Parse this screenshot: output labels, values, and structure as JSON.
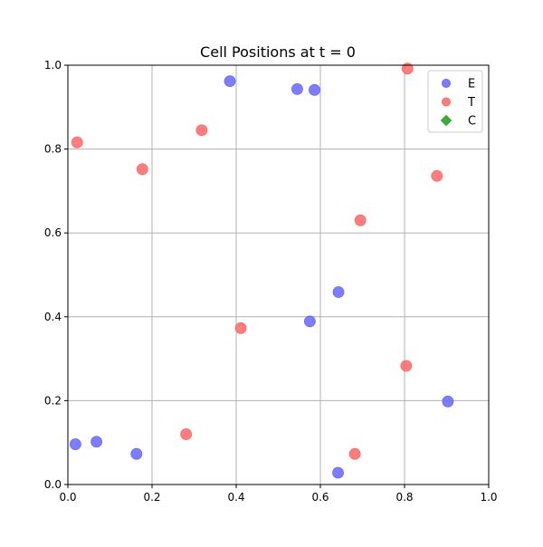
{
  "chart_data": {
    "type": "scatter",
    "title": "Cell Positions at t = 0",
    "xlabel": "",
    "ylabel": "",
    "xlim": [
      0,
      1
    ],
    "ylim": [
      0,
      1
    ],
    "xticks": [
      "0.0",
      "0.2",
      "0.4",
      "0.6",
      "0.8",
      "1.0"
    ],
    "yticks": [
      "0.0",
      "0.2",
      "0.4",
      "0.6",
      "0.8",
      "1.0"
    ],
    "grid": true,
    "legend_position": "top-right",
    "series": [
      {
        "name": "E",
        "marker": "circle",
        "color": "#6666ff",
        "points": [
          {
            "x": 0.385,
            "y": 0.962
          },
          {
            "x": 0.545,
            "y": 0.943
          },
          {
            "x": 0.586,
            "y": 0.941
          },
          {
            "x": 0.643,
            "y": 0.459
          },
          {
            "x": 0.575,
            "y": 0.389
          },
          {
            "x": 0.903,
            "y": 0.198
          },
          {
            "x": 0.018,
            "y": 0.096
          },
          {
            "x": 0.068,
            "y": 0.102
          },
          {
            "x": 0.163,
            "y": 0.073
          },
          {
            "x": 0.642,
            "y": 0.028
          }
        ]
      },
      {
        "name": "T",
        "marker": "circle",
        "color": "#ff6666",
        "points": [
          {
            "x": 0.807,
            "y": 0.992
          },
          {
            "x": 0.022,
            "y": 0.816
          },
          {
            "x": 0.318,
            "y": 0.845
          },
          {
            "x": 0.177,
            "y": 0.752
          },
          {
            "x": 0.877,
            "y": 0.736
          },
          {
            "x": 0.695,
            "y": 0.63
          },
          {
            "x": 0.411,
            "y": 0.373
          },
          {
            "x": 0.804,
            "y": 0.283
          },
          {
            "x": 0.281,
            "y": 0.12
          },
          {
            "x": 0.682,
            "y": 0.073
          }
        ]
      },
      {
        "name": "C",
        "marker": "diamond",
        "color": "#2ca02c",
        "points": []
      }
    ]
  }
}
